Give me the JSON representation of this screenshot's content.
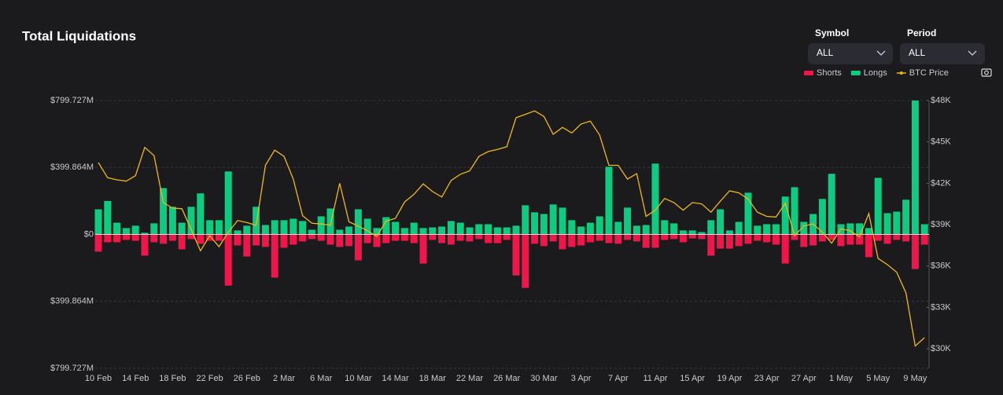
{
  "chart_data": {
    "type": "bar",
    "title": "Total Liquidations",
    "categories": [
      "10 Feb",
      null,
      null,
      null,
      "14 Feb",
      null,
      null,
      null,
      "18 Feb",
      null,
      null,
      null,
      "22 Feb",
      null,
      null,
      null,
      "26 Feb",
      null,
      null,
      null,
      "2 Mar",
      null,
      null,
      null,
      "6 Mar",
      null,
      null,
      null,
      "10 Mar",
      null,
      null,
      null,
      "14 Mar",
      null,
      null,
      null,
      "18 Mar",
      null,
      null,
      null,
      "22 Mar",
      null,
      null,
      null,
      "26 Mar",
      null,
      null,
      null,
      "30 Mar",
      null,
      null,
      null,
      "3 Apr",
      null,
      null,
      null,
      "7 Apr",
      null,
      null,
      null,
      "11 Apr",
      null,
      null,
      null,
      "15 Apr",
      null,
      null,
      null,
      "19 Apr",
      null,
      null,
      null,
      "23 Apr",
      null,
      null,
      null,
      "27 Apr",
      null,
      null,
      null,
      "1 May",
      null,
      null,
      null,
      "5 May",
      null,
      null,
      null,
      "9 May",
      null
    ],
    "series": [
      {
        "name": "Shorts",
        "color": "#f0164a",
        "values": [
          -103,
          -47,
          -47,
          -33,
          -38,
          -127,
          -47,
          -56,
          -38,
          -89,
          -28,
          -56,
          -38,
          -38,
          -306,
          -66,
          -132,
          -66,
          -75,
          -258,
          -80,
          -61,
          -42,
          -28,
          -38,
          -61,
          -75,
          -70,
          -155,
          -52,
          -75,
          -52,
          -38,
          -38,
          -52,
          -174,
          -33,
          -52,
          -61,
          -38,
          -42,
          -28,
          -52,
          -52,
          -33,
          -245,
          -320,
          -56,
          -70,
          -42,
          -89,
          -75,
          -66,
          -47,
          -38,
          -52,
          -56,
          -33,
          -42,
          -80,
          -80,
          -33,
          -28,
          -47,
          -24,
          -28,
          -127,
          -85,
          -85,
          -70,
          -56,
          -38,
          -47,
          -61,
          -174,
          -33,
          -75,
          -66,
          -42,
          -33,
          -70,
          -61,
          -61,
          -136,
          -38,
          -56,
          -33,
          -42,
          -207,
          -61
        ]
      },
      {
        "name": "Longs",
        "color": "#0ecb81",
        "values": [
          150,
          200,
          70,
          38,
          52,
          10,
          66,
          277,
          165,
          70,
          165,
          245,
          85,
          85,
          376,
          24,
          52,
          165,
          56,
          85,
          85,
          94,
          80,
          28,
          108,
          155,
          28,
          47,
          150,
          94,
          38,
          103,
          75,
          38,
          70,
          38,
          42,
          47,
          80,
          70,
          42,
          61,
          61,
          42,
          42,
          52,
          174,
          132,
          122,
          179,
          160,
          85,
          47,
          70,
          108,
          404,
          75,
          160,
          52,
          56,
          423,
          85,
          66,
          24,
          24,
          14,
          85,
          150,
          24,
          75,
          249,
          52,
          61,
          61,
          226,
          282,
          75,
          122,
          212,
          362,
          61,
          66,
          66,
          38,
          338,
          127,
          136,
          207,
          799.727,
          61
        ]
      },
      {
        "name": "BTC Price",
        "color": "#f0b90b",
        "axis": "y2",
        "type": "line",
        "values": [
          43500,
          42400,
          42250,
          42150,
          42550,
          44600,
          44000,
          40600,
          40200,
          40150,
          38650,
          37100,
          38200,
          37400,
          38450,
          39300,
          39150,
          38950,
          43300,
          44400,
          43950,
          42300,
          39650,
          39100,
          39050,
          38950,
          42000,
          39200,
          38900,
          38550,
          38150,
          39250,
          39450,
          40650,
          41200,
          41950,
          41400,
          41000,
          42200,
          42650,
          42900,
          43950,
          44300,
          44450,
          44650,
          46750,
          47000,
          47250,
          46850,
          45550,
          46050,
          45650,
          46300,
          46500,
          45500,
          43300,
          43300,
          42300,
          42700,
          39600,
          40050,
          40900,
          40600,
          40050,
          40600,
          40500,
          39900,
          40700,
          41450,
          41300,
          40850,
          39900,
          39600,
          39550,
          40550,
          38200,
          38900,
          39050,
          38450,
          37650,
          38700,
          38550,
          38100,
          39800,
          36550,
          36100,
          35550,
          34050,
          30200,
          30800
        ]
      }
    ],
    "ylim": [
      -799.727,
      799.727
    ],
    "yticks": [
      {
        "value": 799.727,
        "label": "$799.727M"
      },
      {
        "value": 399.864,
        "label": "$399.864M"
      },
      {
        "value": 0,
        "label": "$0"
      },
      {
        "value": -399.864,
        "label": "$399.864M"
      },
      {
        "value": -799.727,
        "label": "$799.727M"
      }
    ],
    "y2lim": [
      28580,
      48000
    ],
    "y2ticks": [
      {
        "value": 30000,
        "label": "$30K"
      },
      {
        "value": 33000,
        "label": "$33K"
      },
      {
        "value": 36000,
        "label": "$36K"
      },
      {
        "value": 39000,
        "label": "$39K"
      },
      {
        "value": 42000,
        "label": "$42K"
      },
      {
        "value": 45000,
        "label": "$45K"
      },
      {
        "value": 48000,
        "label": "$48K"
      }
    ],
    "grid": true,
    "legend": "top-right"
  },
  "controls": [
    {
      "label": "Symbol",
      "value": "ALL"
    },
    {
      "label": "Period",
      "value": "ALL"
    }
  ]
}
